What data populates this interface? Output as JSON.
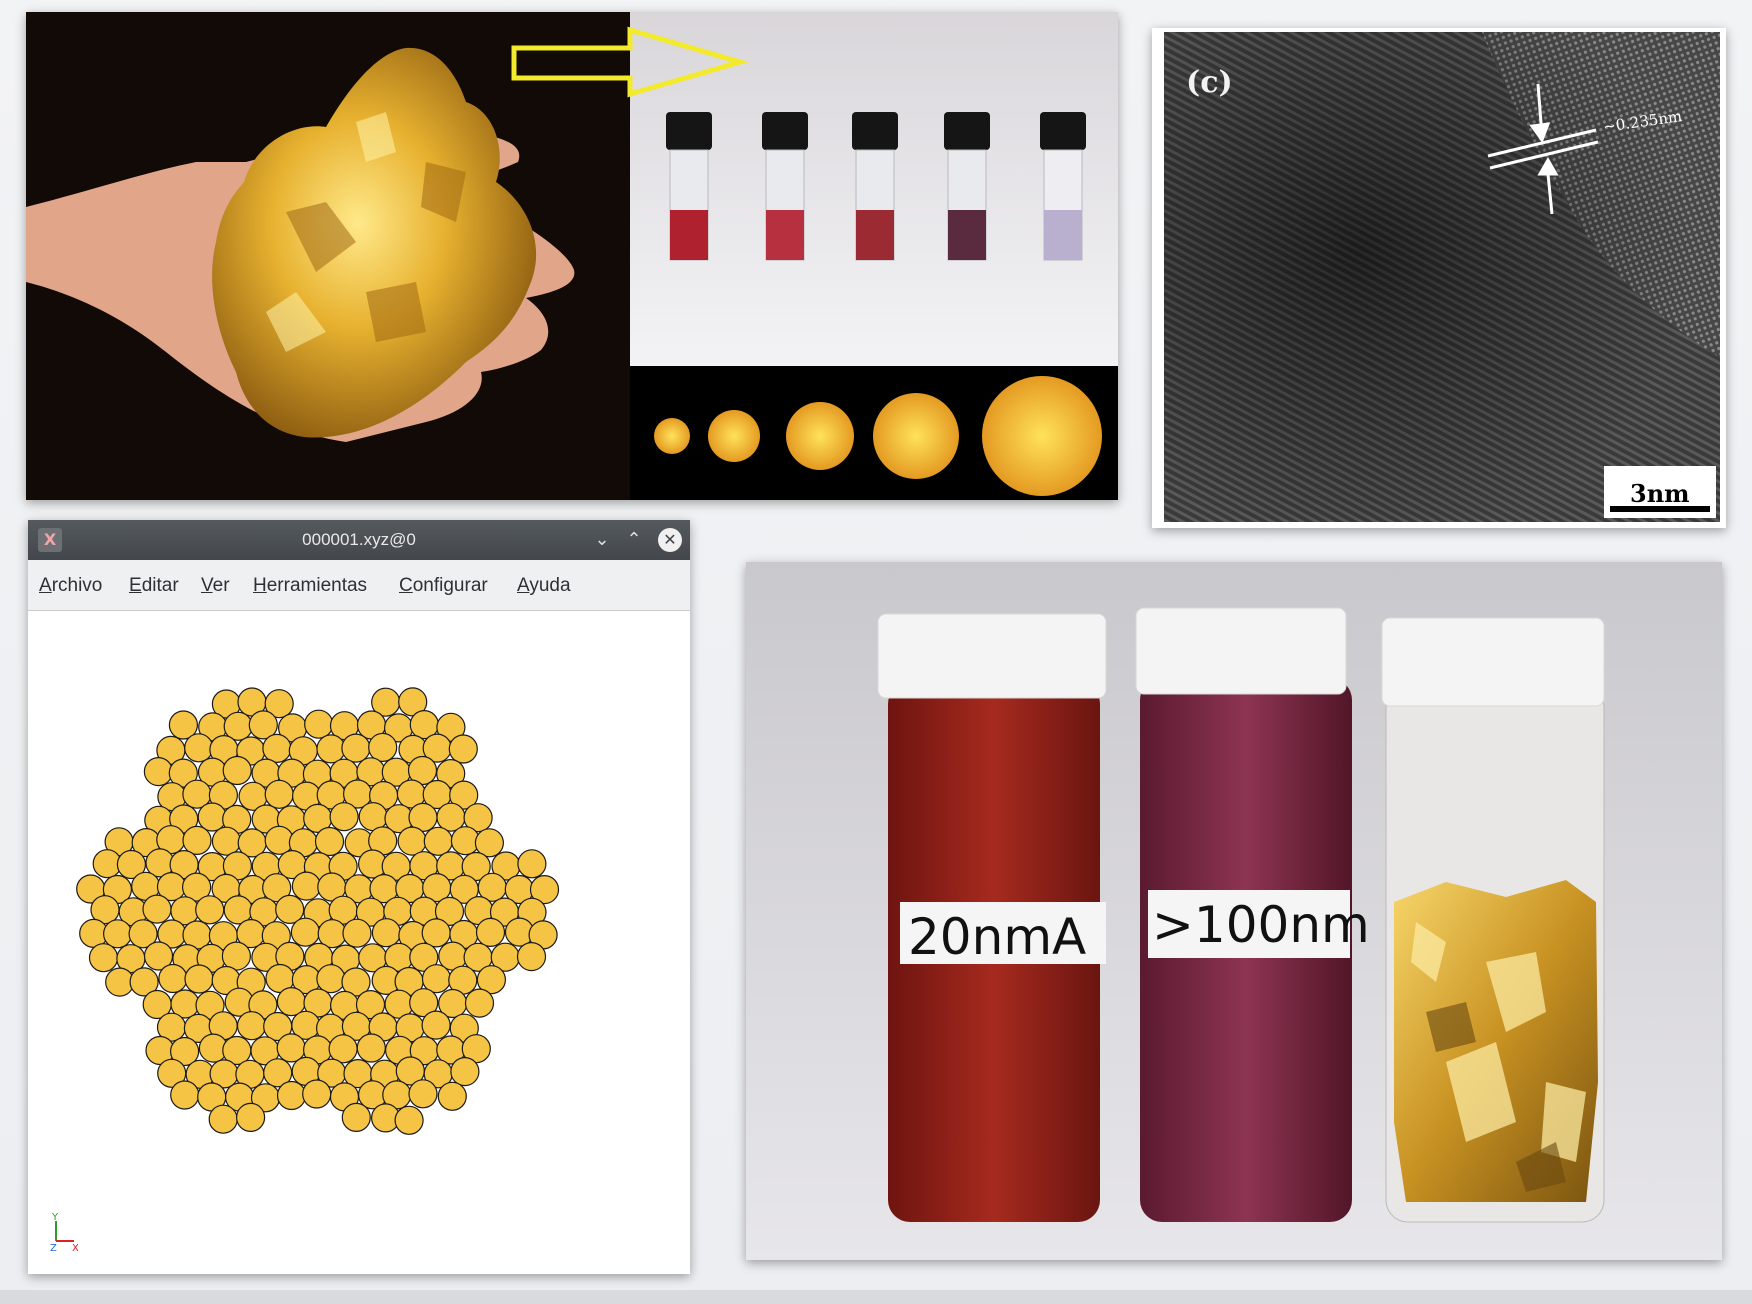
{
  "window": {
    "title": "000001.xyz@0",
    "app_icon": "x-app-icon",
    "controls": {
      "minimize": "⌄",
      "maximize": "⌃",
      "close": "✕"
    }
  },
  "menu": {
    "items": [
      "Archivo",
      "Editar",
      "Ver",
      "Herramientas",
      "Configurar",
      "Ayuda"
    ]
  },
  "axes": {
    "y": "Y",
    "z": "Z",
    "x": "X"
  },
  "tem": {
    "panel_label": "(c)",
    "lattice_spacing": "~0.235nm",
    "scale_bar": "3nm"
  },
  "vials": {
    "label_left": "20nmA",
    "label_middle": ">100nm"
  },
  "colors": {
    "gold": "#f5c445",
    "titlebar": "#4a4e52",
    "highlight_arrow": "#f2ea2a"
  }
}
